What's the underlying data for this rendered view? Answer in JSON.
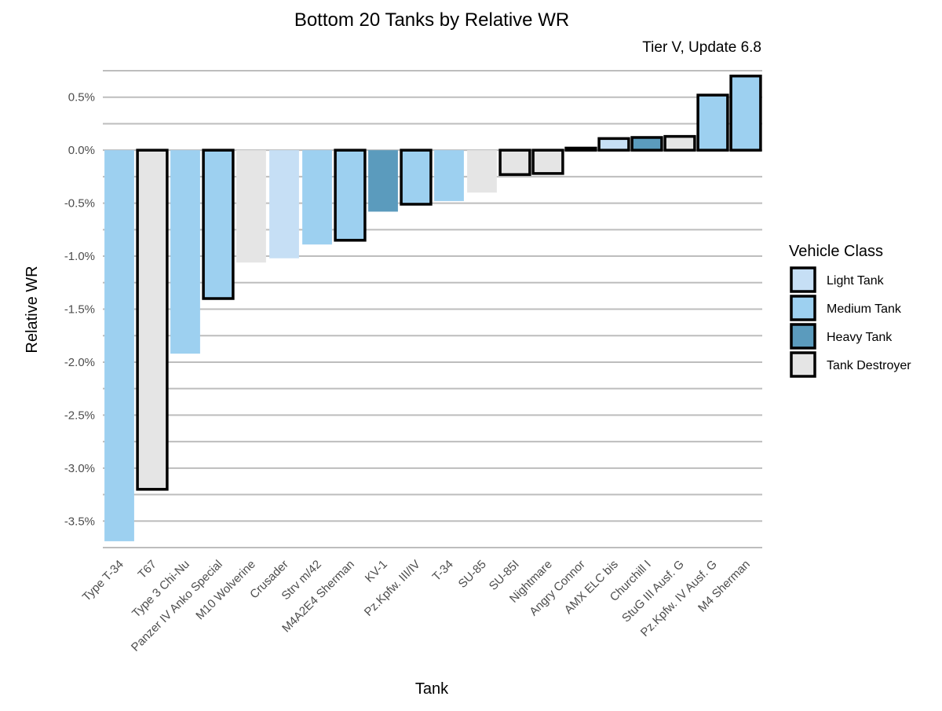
{
  "chart_data": {
    "type": "bar",
    "title": "Bottom 20 Tanks by Relative WR",
    "subtitle": "Tier V, Update 6.8",
    "xlabel": "Tank",
    "ylabel": "Relative WR",
    "ylim": [
      -3.75,
      0.75
    ],
    "y_ticks": [
      0.5,
      0.0,
      -0.5,
      -1.0,
      -1.5,
      -2.0,
      -2.5,
      -3.0,
      -3.5
    ],
    "y_tick_labels": [
      "0.5%",
      "0.0%",
      "-0.5%",
      "-1.0%",
      "-1.5%",
      "-2.0%",
      "-2.5%",
      "-3.0%",
      "-3.5%"
    ],
    "grid": true,
    "legend": {
      "title": "Vehicle Class",
      "position": "right",
      "entries": [
        {
          "label": "Light Tank",
          "color": "#c6dff5"
        },
        {
          "label": "Medium Tank",
          "color": "#9dd0f0"
        },
        {
          "label": "Heavy Tank",
          "color": "#5b9bbd"
        },
        {
          "label": "Tank Destroyer",
          "color": "#e5e5e5"
        }
      ]
    },
    "categories": [
      "Type T-34",
      "T67",
      "Type 3 Chi-Nu",
      "Panzer IV Anko Special",
      "M10 Wolverine",
      "Crusader",
      "Strv m/42",
      "M4A2E4 Sherman",
      "KV-1",
      "Pz.Kpfw. III/IV",
      "T-34",
      "SU-85",
      "SU-85I",
      "Nightmare",
      "Angry Connor",
      "AMX ELC bis",
      "Churchill I",
      "StuG III Ausf. G",
      "Pz.Kpfw. IV Ausf. G",
      "M4 Sherman"
    ],
    "values": [
      -3.69,
      -3.2,
      -1.92,
      -1.4,
      -1.06,
      -1.02,
      -0.89,
      -0.85,
      -0.58,
      -0.51,
      -0.48,
      -0.4,
      -0.23,
      -0.22,
      0.02,
      0.11,
      0.12,
      0.13,
      0.52,
      0.7
    ],
    "vehicle_class": [
      "Medium Tank",
      "Tank Destroyer",
      "Medium Tank",
      "Medium Tank",
      "Tank Destroyer",
      "Light Tank",
      "Medium Tank",
      "Medium Tank",
      "Heavy Tank",
      "Medium Tank",
      "Medium Tank",
      "Tank Destroyer",
      "Tank Destroyer",
      "Tank Destroyer",
      "Tank Destroyer",
      "Light Tank",
      "Heavy Tank",
      "Tank Destroyer",
      "Medium Tank",
      "Medium Tank"
    ],
    "outlined": [
      false,
      true,
      false,
      true,
      false,
      false,
      false,
      true,
      false,
      true,
      false,
      false,
      true,
      true,
      true,
      true,
      true,
      true,
      true,
      true
    ]
  }
}
